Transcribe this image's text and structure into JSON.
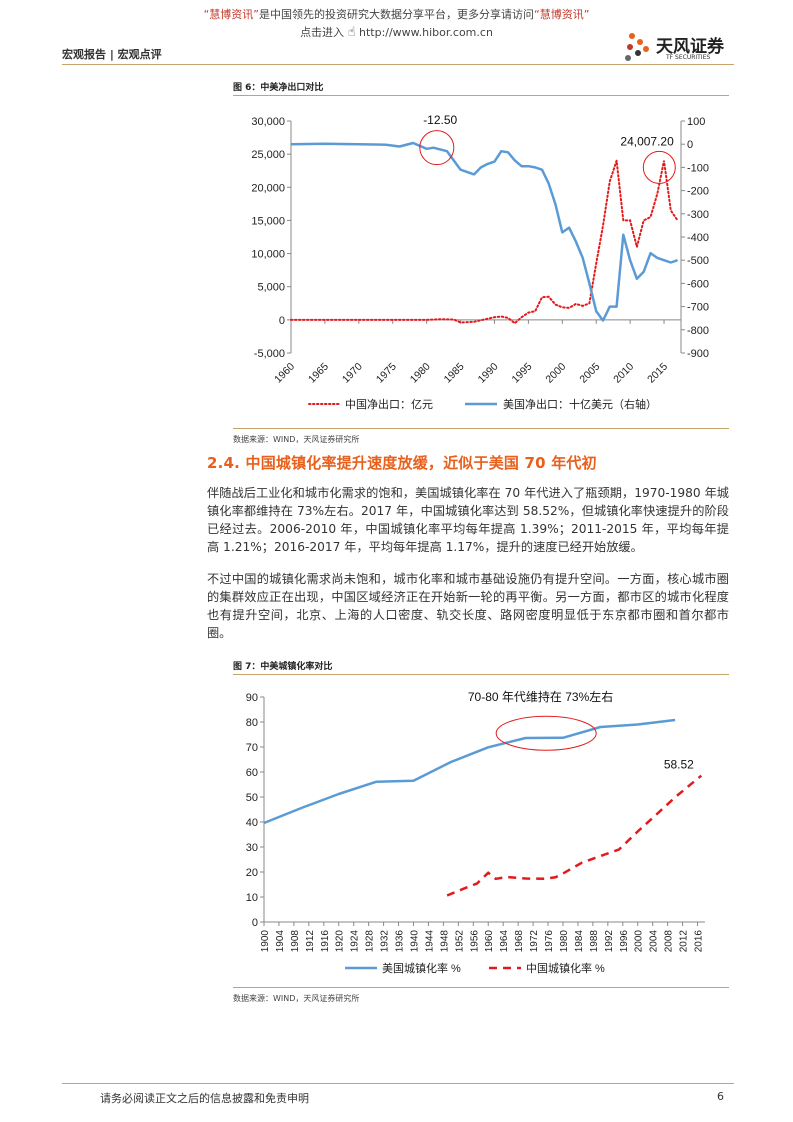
{
  "banner": {
    "brand_q1": "“慧博资讯”",
    "middle": "是中国领先的投资研究大数据分享平台，更多分享请访问",
    "brand_q2": "“慧博资讯”",
    "line2_prefix": "点击进入",
    "url": "http://www.hibor.com.cn"
  },
  "header": {
    "doc_type": "宏观报告 | 宏观点评",
    "logo_cn": "天风证券",
    "logo_en": "TF SECURITIES"
  },
  "colors": {
    "accent": "#e8601c",
    "rule": "#c9a26b",
    "us_series": "#5b9bd5",
    "cn_series": "#e31a1c"
  },
  "figure6": {
    "title": "图 6：中美净出口对比",
    "source": "数据来源：WIND，天风证券研究所"
  },
  "section": {
    "heading": "2.4. 中国城镇化率提升速度放缓，近似于美国 70 年代初",
    "paragraphs": [
      "伴随战后工业化和城市化需求的饱和，美国城镇化率在 70 年代进入了瓶颈期，1970-1980 年城镇化率都维持在 73%左右。2017 年，中国城镇化率达到 58.52%，但城镇化率快速提升的阶段已经过去。2006-2010 年，中国城镇化率平均每年提高 1.39%；2011-2015 年，平均每年提高 1.21%；2016-2017 年，平均每年提高 1.17%，提升的速度已经开始放缓。",
      "不过中国的城镇化需求尚未饱和，城市化率和城市基础设施仍有提升空间。一方面，核心城市圈的集群效应正在出现，中国区域经济正在开始新一轮的再平衡。另一方面，都市区的城市化程度也有提升空间，北京、上海的人口密度、轨交长度、路网密度明显低于东京都市圈和首尔都市圈。"
    ]
  },
  "figure7": {
    "title": "图 7：中美城镇化率对比",
    "source": "数据来源：WIND，天风证券研究所"
  },
  "footer": {
    "disclaimer": "请务必阅读正文之后的信息披露和免责申明",
    "page": "6"
  },
  "chart_data": [
    {
      "type": "line",
      "title": "",
      "y_left_range": [
        -5000,
        30000
      ],
      "y_left_ticks": [
        "30,000",
        "25,000",
        "20,000",
        "15,000",
        "10,000",
        "5,000",
        "0",
        "-5,000"
      ],
      "y_right_range": [
        -900,
        100
      ],
      "y_right_ticks": [
        "100",
        "0",
        "-100",
        "-200",
        "-300",
        "-400",
        "-500",
        "-600",
        "-700",
        "-800",
        "-900"
      ],
      "x_ticks": [
        "1960",
        "1965",
        "1970",
        "1975",
        "1980",
        "1985",
        "1990",
        "1995",
        "2000",
        "2005",
        "2010",
        "2015"
      ],
      "annotations": [
        "-12.50",
        "24,007.20"
      ],
      "legend_position": "bottom",
      "grid": false,
      "series": [
        {
          "name": "中国净出口：亿元",
          "axis": "left",
          "style": "dotted",
          "x": [
            1960,
            1965,
            1970,
            1975,
            1978,
            1980,
            1982,
            1984,
            1985,
            1987,
            1990,
            1991,
            1992,
            1993,
            1994,
            1995,
            1996,
            1997,
            1998,
            1999,
            2000,
            2001,
            2002,
            2003,
            2004,
            2005,
            2006,
            2007,
            2008,
            2009,
            2010,
            2011,
            2012,
            2013,
            2014,
            2015,
            2016,
            2017
          ],
          "values": [
            0,
            0,
            0,
            0,
            0,
            0,
            100,
            50,
            -400,
            -300,
            400,
            500,
            300,
            -500,
            400,
            1100,
            1300,
            3400,
            3500,
            2300,
            1900,
            1800,
            2400,
            2100,
            2500,
            8500,
            14200,
            20900,
            24007.2,
            15000,
            15000,
            11000,
            15000,
            15500,
            19000,
            24007.2,
            16500,
            15000
          ]
        },
        {
          "name": "美国净出口：十亿美元（右轴）",
          "axis": "right",
          "style": "solid",
          "x": [
            1960,
            1965,
            1970,
            1974,
            1976,
            1978,
            1980,
            1981,
            1983,
            1985,
            1987,
            1988,
            1989,
            1990,
            1991,
            1992,
            1993,
            1994,
            1995,
            1996,
            1997,
            1998,
            1999,
            2000,
            2001,
            2002,
            2003,
            2004,
            2005,
            2006,
            2007,
            2008,
            2009,
            2010,
            2011,
            2012,
            2013,
            2014,
            2015,
            2016,
            2017
          ],
          "values": [
            0,
            2,
            0,
            -2,
            -10,
            5,
            -20,
            -15,
            -30,
            -110,
            -130,
            -100,
            -85,
            -75,
            -30,
            -35,
            -70,
            -95,
            -95,
            -100,
            -110,
            -170,
            -260,
            -380,
            -360,
            -420,
            -490,
            -600,
            -720,
            -760,
            -700,
            -700,
            -390,
            -500,
            -580,
            -550,
            -470,
            -490,
            -500,
            -510,
            -500
          ]
        }
      ]
    },
    {
      "type": "line",
      "title": "",
      "ylim": [
        0,
        90
      ],
      "y_ticks": [
        "90",
        "80",
        "70",
        "60",
        "50",
        "40",
        "30",
        "20",
        "10",
        "0"
      ],
      "x_ticks": [
        "1900",
        "1904",
        "1908",
        "1912",
        "1916",
        "1920",
        "1924",
        "1928",
        "1932",
        "1936",
        "1940",
        "1944",
        "1948",
        "1952",
        "1956",
        "1960",
        "1964",
        "1968",
        "1972",
        "1976",
        "1980",
        "1984",
        "1988",
        "1992",
        "1996",
        "2000",
        "2004",
        "2008",
        "2012",
        "2016"
      ],
      "annotations": [
        "70-80 年代维持在 73%左右",
        "58.52"
      ],
      "legend_position": "bottom",
      "grid": false,
      "series": [
        {
          "name": "美国城镇化率 %",
          "style": "solid",
          "x": [
            1900,
            1910,
            1920,
            1930,
            1940,
            1950,
            1960,
            1970,
            1980,
            1990,
            2000,
            2010
          ],
          "values": [
            39.6,
            45.6,
            51.2,
            56.1,
            56.5,
            64.0,
            69.9,
            73.6,
            73.7,
            78.0,
            79.0,
            80.8
          ]
        },
        {
          "name": "中国城镇化率 %",
          "style": "dashed",
          "x": [
            1949,
            1954,
            1957,
            1960,
            1962,
            1965,
            1970,
            1975,
            1978,
            1980,
            1985,
            1990,
            1995,
            2000,
            2005,
            2010,
            2015,
            2017
          ],
          "values": [
            10.6,
            13.7,
            15.4,
            19.7,
            17.3,
            18.0,
            17.4,
            17.3,
            17.9,
            19.4,
            23.7,
            26.4,
            29.0,
            36.2,
            43.0,
            49.9,
            56.1,
            58.52
          ]
        }
      ]
    }
  ]
}
